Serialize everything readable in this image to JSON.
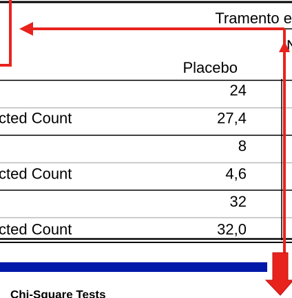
{
  "header": {
    "group": "Tramento e",
    "sub": "N",
    "column": "Placebo"
  },
  "table": {
    "rows": [
      {
        "value": "24"
      },
      {
        "label": "cted Count",
        "value": "27,4"
      },
      {
        "value": "8"
      },
      {
        "label": "cted Count",
        "value": "4,6"
      },
      {
        "value": "32"
      },
      {
        "label": "cted Count",
        "value": "32,0"
      }
    ]
  },
  "footer": {
    "title": "Chi-Square Tests"
  }
}
